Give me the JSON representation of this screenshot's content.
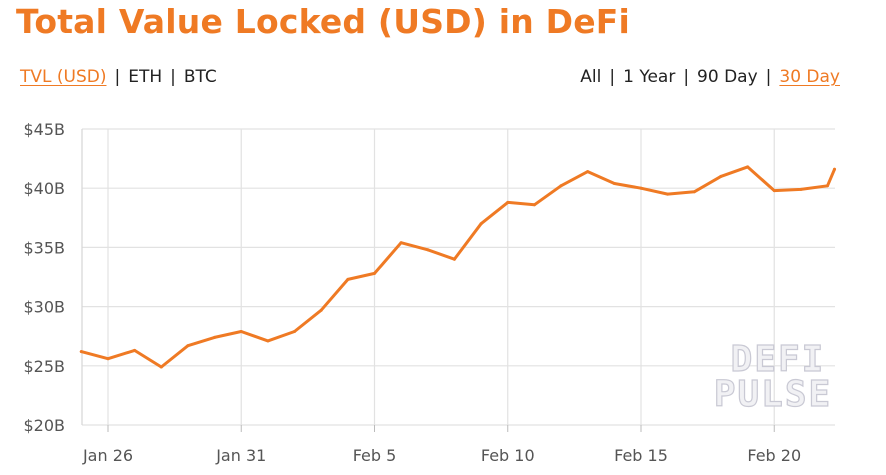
{
  "title": "Total Value Locked (USD) in DeFi",
  "metric_toggles": [
    {
      "label": "TVL (USD)",
      "active": true
    },
    {
      "label": "ETH",
      "active": false
    },
    {
      "label": "BTC",
      "active": false
    }
  ],
  "range_toggles": [
    {
      "label": "All",
      "active": false
    },
    {
      "label": "1 Year",
      "active": false
    },
    {
      "label": "90 Day",
      "active": false
    },
    {
      "label": "30 Day",
      "active": true
    }
  ],
  "watermark": [
    "DEFI",
    "PULSE"
  ],
  "colors": {
    "accent": "#ef7a24",
    "grid": "#e2e2e2",
    "text": "#555555"
  },
  "chart_data": {
    "type": "line",
    "title": "Total Value Locked (USD) in DeFi",
    "xlabel": "",
    "ylabel": "",
    "x_tick_labels": [
      "Jan 26",
      "Jan 31",
      "Feb 5",
      "Feb 10",
      "Feb 15",
      "Feb 20"
    ],
    "x_tick_dates": [
      "Jan 26",
      "Jan 31",
      "Feb 5",
      "Feb 10",
      "Feb 15",
      "Feb 20"
    ],
    "y_tick_labels": [
      "$20B",
      "$25B",
      "$30B",
      "$35B",
      "$40B",
      "$45B"
    ],
    "y_tick_values": [
      20,
      25,
      30,
      35,
      40,
      45
    ],
    "ylim": [
      20,
      45
    ],
    "y_unit": "billion USD",
    "grid": true,
    "legend": "none",
    "series": [
      {
        "color": "#ef7a24",
        "x": [
          "Jan 25",
          "Jan 26",
          "Jan 27",
          "Jan 28",
          "Jan 29",
          "Jan 30",
          "Jan 31",
          "Feb 1",
          "Feb 2",
          "Feb 3",
          "Feb 4",
          "Feb 5",
          "Feb 6",
          "Feb 7",
          "Feb 8",
          "Feb 9",
          "Feb 10",
          "Feb 11",
          "Feb 12",
          "Feb 13",
          "Feb 14",
          "Feb 15",
          "Feb 16",
          "Feb 17",
          "Feb 18",
          "Feb 19",
          "Feb 20",
          "Feb 21",
          "Feb 22",
          "Feb 22"
        ],
        "values": [
          26.2,
          25.6,
          26.3,
          24.9,
          26.7,
          27.4,
          27.9,
          27.1,
          27.9,
          29.7,
          32.3,
          32.8,
          35.4,
          34.8,
          34.0,
          37.0,
          38.8,
          38.6,
          40.2,
          41.4,
          40.4,
          40.0,
          39.5,
          39.7,
          41.0,
          41.8,
          39.8,
          39.9,
          40.2,
          41.6
        ]
      }
    ]
  }
}
